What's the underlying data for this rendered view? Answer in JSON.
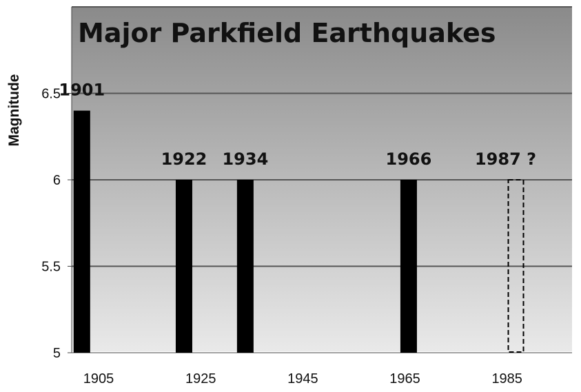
{
  "chart_data": {
    "type": "bar",
    "title": "Major Parkfield Earthquakes",
    "xlabel": "",
    "ylabel": "Magnitude",
    "ylim": [
      5,
      7
    ],
    "xlim": [
      1900,
      1998
    ],
    "yticks": [
      "5",
      "5.5",
      "6",
      "6.5"
    ],
    "ytick_values": [
      5,
      5.5,
      6,
      6.5
    ],
    "xticks": [
      "1905",
      "1925",
      "1945",
      "1965",
      "1985"
    ],
    "xtick_values": [
      1905,
      1925,
      1945,
      1965,
      1985
    ],
    "grid": true,
    "colors": {
      "bar": "#000000",
      "background_top": "#8a8a8a",
      "background_bottom": "#e9e9e9",
      "grid": "#555555"
    },
    "bars": [
      {
        "label": "1901",
        "x": 1902,
        "value": 6.4,
        "style": "solid"
      },
      {
        "label": "1922",
        "x": 1922,
        "value": 6.0,
        "style": "solid"
      },
      {
        "label": "1934",
        "x": 1934,
        "value": 6.0,
        "style": "solid"
      },
      {
        "label": "1966",
        "x": 1966,
        "value": 6.0,
        "style": "solid"
      },
      {
        "label": "1987 ?",
        "x": 1987,
        "value": 6.0,
        "style": "dashed"
      }
    ]
  }
}
